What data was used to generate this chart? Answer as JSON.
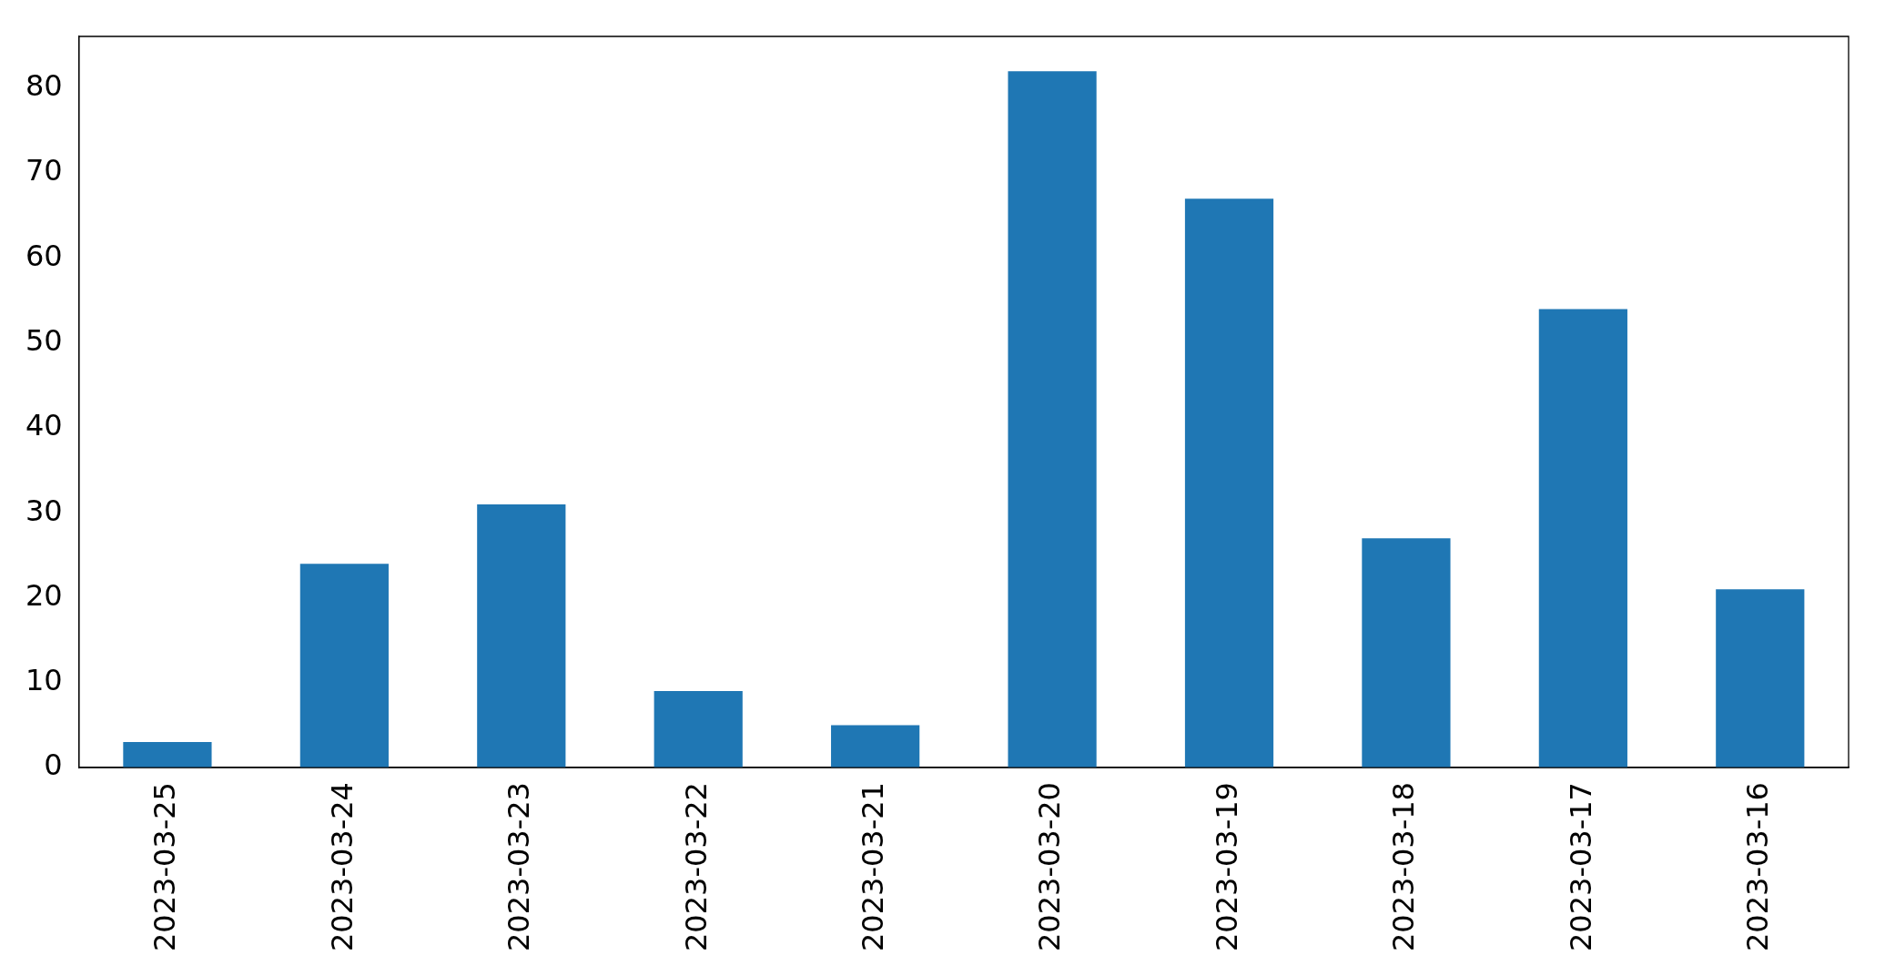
{
  "chart_data": {
    "type": "bar",
    "categories": [
      "2023-03-25",
      "2023-03-24",
      "2023-03-23",
      "2023-03-22",
      "2023-03-21",
      "2023-03-20",
      "2023-03-19",
      "2023-03-18",
      "2023-03-17",
      "2023-03-16"
    ],
    "values": [
      3,
      24,
      31,
      9,
      5,
      82,
      67,
      27,
      54,
      21
    ],
    "color": "#1f77b4",
    "ylim": [
      0,
      86.1
    ],
    "yticks": [
      0,
      10,
      20,
      30,
      40,
      50,
      60,
      70,
      80
    ],
    "grid": false,
    "legend": false
  }
}
